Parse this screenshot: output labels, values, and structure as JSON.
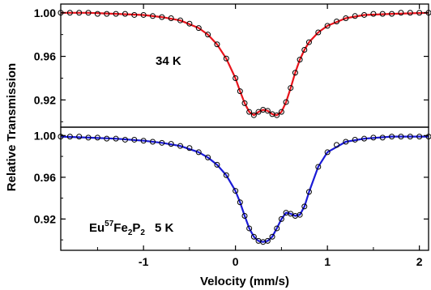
{
  "chart_data": [
    {
      "type": "scatter",
      "panel": "top",
      "annotation": "34 K",
      "xlim": [
        -1.9,
        2.1
      ],
      "ylim": [
        0.895,
        1.008
      ],
      "yticks": [
        "1.00",
        "0.96",
        "0.92"
      ],
      "ytick_values": [
        1.0,
        0.96,
        0.92
      ],
      "fit_color": "#e8141c",
      "marker_color": "#000000",
      "series": [
        {
          "kind": "data",
          "style": "open-circles",
          "x": [
            -1.9,
            -1.8,
            -1.7,
            -1.6,
            -1.5,
            -1.4,
            -1.3,
            -1.2,
            -1.1,
            -1.0,
            -0.9,
            -0.8,
            -0.7,
            -0.6,
            -0.5,
            -0.4,
            -0.3,
            -0.2,
            -0.1,
            0.0,
            0.05,
            0.1,
            0.15,
            0.2,
            0.25,
            0.3,
            0.35,
            0.4,
            0.45,
            0.5,
            0.55,
            0.6,
            0.65,
            0.7,
            0.75,
            0.8,
            0.9,
            1.0,
            1.1,
            1.2,
            1.3,
            1.4,
            1.5,
            1.6,
            1.7,
            1.8,
            1.9,
            2.0,
            2.1
          ],
          "y": [
            1.0,
            1.0,
            1.0,
            1.0,
            0.999,
            0.999,
            0.999,
            0.999,
            0.998,
            0.998,
            0.997,
            0.996,
            0.995,
            0.993,
            0.99,
            0.986,
            0.98,
            0.971,
            0.958,
            0.94,
            0.928,
            0.917,
            0.909,
            0.906,
            0.909,
            0.911,
            0.91,
            0.907,
            0.906,
            0.909,
            0.918,
            0.931,
            0.945,
            0.957,
            0.966,
            0.973,
            0.982,
            0.988,
            0.992,
            0.995,
            0.997,
            0.998,
            0.999,
            0.999,
            0.999,
            1.0,
            1.0,
            1.0,
            1.0
          ]
        },
        {
          "kind": "fit",
          "style": "line",
          "x": [
            -1.9,
            -1.6,
            -1.3,
            -1.0,
            -0.8,
            -0.6,
            -0.4,
            -0.3,
            -0.2,
            -0.1,
            0.0,
            0.05,
            0.1,
            0.15,
            0.2,
            0.25,
            0.3,
            0.35,
            0.4,
            0.45,
            0.5,
            0.55,
            0.6,
            0.65,
            0.7,
            0.75,
            0.8,
            0.9,
            1.0,
            1.2,
            1.4,
            1.7,
            2.1
          ],
          "y": [
            1.0,
            1.0,
            0.999,
            0.998,
            0.996,
            0.993,
            0.986,
            0.98,
            0.971,
            0.958,
            0.94,
            0.928,
            0.917,
            0.909,
            0.906,
            0.909,
            0.911,
            0.91,
            0.907,
            0.906,
            0.909,
            0.918,
            0.931,
            0.945,
            0.957,
            0.966,
            0.973,
            0.982,
            0.988,
            0.995,
            0.998,
            0.999,
            1.0
          ]
        }
      ]
    },
    {
      "type": "scatter",
      "panel": "bottom",
      "annotation": "Eu57Fe2P2   5 K",
      "annotation_parts": {
        "eu": "Eu",
        "iso": "57",
        "fe": "Fe",
        "s1": "2",
        "p": "P",
        "s2": "2",
        "temp": "5 K"
      },
      "xlim": [
        -1.9,
        2.1
      ],
      "ylim": [
        0.89,
        1.008
      ],
      "yticks": [
        "1.00",
        "0.96",
        "0.92"
      ],
      "ytick_values": [
        1.0,
        0.96,
        0.92
      ],
      "fit_color": "#1a1ad6",
      "marker_color": "#000000",
      "series": [
        {
          "kind": "data",
          "style": "open-circles",
          "x": [
            -1.9,
            -1.8,
            -1.7,
            -1.6,
            -1.5,
            -1.4,
            -1.3,
            -1.2,
            -1.1,
            -1.0,
            -0.9,
            -0.8,
            -0.7,
            -0.6,
            -0.5,
            -0.4,
            -0.3,
            -0.2,
            -0.1,
            0.0,
            0.05,
            0.1,
            0.15,
            0.2,
            0.25,
            0.3,
            0.35,
            0.4,
            0.45,
            0.5,
            0.55,
            0.6,
            0.65,
            0.7,
            0.75,
            0.8,
            0.9,
            1.0,
            1.1,
            1.2,
            1.3,
            1.4,
            1.5,
            1.6,
            1.7,
            1.8,
            1.9,
            2.0,
            2.1
          ],
          "y": [
            0.999,
            0.999,
            0.999,
            0.998,
            0.998,
            0.997,
            0.997,
            0.996,
            0.996,
            0.995,
            0.994,
            0.993,
            0.992,
            0.99,
            0.988,
            0.984,
            0.979,
            0.972,
            0.962,
            0.947,
            0.936,
            0.923,
            0.911,
            0.903,
            0.899,
            0.898,
            0.899,
            0.903,
            0.911,
            0.92,
            0.926,
            0.925,
            0.923,
            0.924,
            0.932,
            0.946,
            0.97,
            0.984,
            0.991,
            0.994,
            0.996,
            0.997,
            0.998,
            0.998,
            0.999,
            0.999,
            0.999,
            0.999,
            0.999
          ]
        },
        {
          "kind": "fit",
          "style": "line",
          "x": [
            -1.9,
            -1.6,
            -1.3,
            -1.0,
            -0.8,
            -0.6,
            -0.4,
            -0.3,
            -0.2,
            -0.1,
            0.0,
            0.05,
            0.1,
            0.15,
            0.2,
            0.25,
            0.3,
            0.35,
            0.4,
            0.45,
            0.5,
            0.55,
            0.6,
            0.65,
            0.7,
            0.75,
            0.8,
            0.9,
            1.0,
            1.2,
            1.4,
            1.7,
            2.1
          ],
          "y": [
            0.999,
            0.998,
            0.997,
            0.995,
            0.993,
            0.99,
            0.984,
            0.979,
            0.972,
            0.962,
            0.947,
            0.936,
            0.923,
            0.911,
            0.903,
            0.899,
            0.898,
            0.899,
            0.903,
            0.911,
            0.92,
            0.926,
            0.925,
            0.923,
            0.924,
            0.932,
            0.946,
            0.97,
            0.984,
            0.994,
            0.997,
            0.999,
            0.999
          ]
        }
      ]
    }
  ],
  "axes": {
    "xlabel": "Velocity (mm/s)",
    "ylabel": "Relative Transmission",
    "xticks": [
      "-1",
      "0",
      "1",
      "2"
    ],
    "xtick_values": [
      -1,
      0,
      1,
      2
    ]
  }
}
